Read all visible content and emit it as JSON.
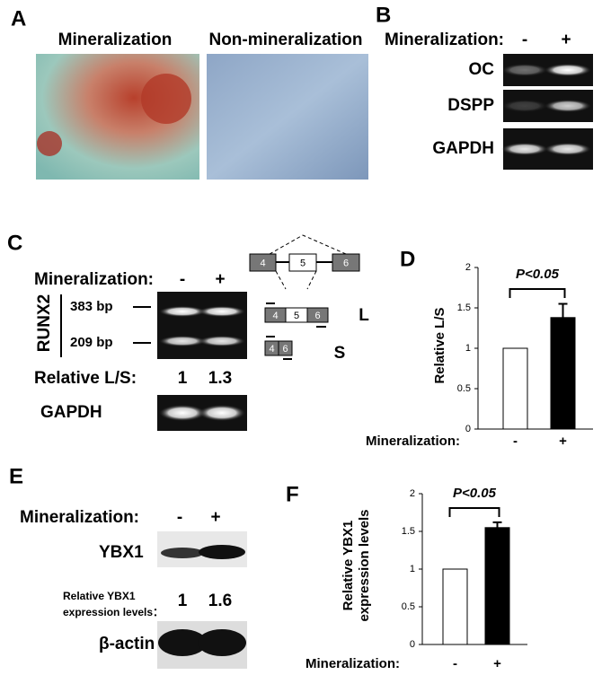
{
  "panels": {
    "a": {
      "label": "A",
      "images": [
        "Mineralization",
        "Non-mineralization"
      ]
    },
    "b": {
      "label": "B",
      "condition": "Mineralization:",
      "minus": "-",
      "plus": "+",
      "rows": [
        "OC",
        "DSPP",
        "GAPDH"
      ]
    },
    "c": {
      "label": "C",
      "condition": "Mineralization:",
      "minus": "-",
      "plus": "+",
      "gene": "RUNX2",
      "bands": [
        "383 bp",
        "209 bp"
      ],
      "ratio_label": "Relative L/S:",
      "ratios": [
        "1",
        "1.3"
      ],
      "control": "GAPDH",
      "diagram": {
        "full": [
          "4",
          "5",
          "6"
        ],
        "long": [
          "4",
          "5",
          "6"
        ],
        "long_label": "L",
        "short": [
          "4",
          "6"
        ],
        "short_label": "S"
      }
    },
    "e": {
      "label": "E",
      "condition": "Mineralization:",
      "minus": "-",
      "plus": "+",
      "protein": "YBX1",
      "ratio_label": [
        "Relative YBX1",
        "expression levels："
      ],
      "ratios": [
        "1",
        "1.6"
      ],
      "control": "β-actin"
    }
  },
  "chart_data": [
    {
      "type": "bar",
      "label": "D",
      "annotation": "P<0.05",
      "y_label": [
        "Relative L/S"
      ],
      "x_label": "Mineralization:",
      "categories": [
        "-",
        "+"
      ],
      "values": [
        1,
        1.38
      ],
      "errors": [
        0,
        0.17
      ],
      "colors": [
        "#ffffff",
        "#000000"
      ],
      "ylim": [
        0,
        2
      ],
      "yticks": [
        0,
        0.5,
        1,
        1.5,
        2
      ]
    },
    {
      "type": "bar",
      "label": "F",
      "annotation": "P<0.05",
      "y_label": [
        "Relative YBX1",
        "expression levels"
      ],
      "x_label": "Mineralization:",
      "categories": [
        "-",
        "+"
      ],
      "values": [
        1,
        1.55
      ],
      "errors": [
        0,
        0.07
      ],
      "colors": [
        "#ffffff",
        "#000000"
      ],
      "ylim": [
        0,
        2
      ],
      "yticks": [
        0,
        0.5,
        1,
        1.5,
        2
      ]
    }
  ]
}
